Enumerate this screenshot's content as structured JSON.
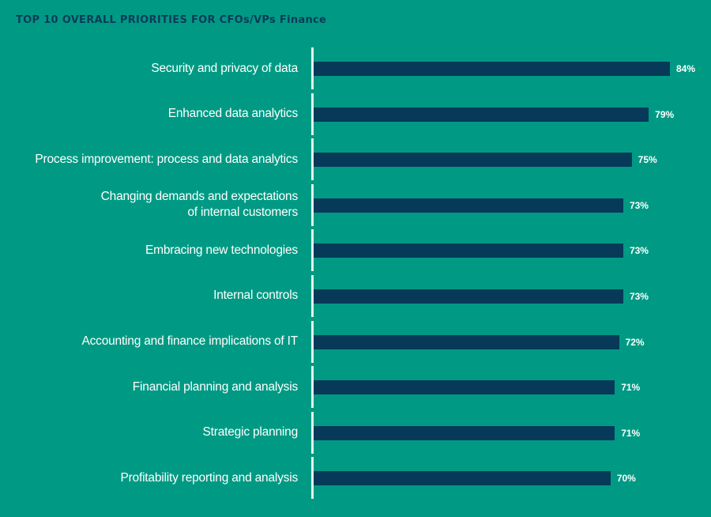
{
  "chart_data": {
    "type": "bar",
    "orientation": "horizontal",
    "title": "TOP 10 OVERALL PRIORITIES FOR CFOs/VPs Finance",
    "xlabel": "",
    "ylabel": "",
    "categories": [
      "Security and privacy of data",
      "Enhanced data analytics",
      "Process improvement: process and data analytics",
      "Changing demands and expectations\nof internal customers",
      "Embracing new technologies",
      "Internal controls",
      "Accounting and finance implications of IT",
      "Financial planning and analysis",
      "Strategic planning",
      "Profitability reporting and analysis"
    ],
    "values": [
      84,
      79,
      75,
      73,
      73,
      73,
      72,
      71,
      71,
      70
    ],
    "value_labels": [
      "84%",
      "79%",
      "75%",
      "73%",
      "73%",
      "73%",
      "72%",
      "71%",
      "71%",
      "70%"
    ],
    "unit": "%",
    "grid": false,
    "legend": null,
    "colors": {
      "background": "#009a84",
      "bar": "#073a58",
      "axis": "#e2f6f1",
      "title": "#0b3b5a",
      "text": "#ffffff"
    }
  }
}
